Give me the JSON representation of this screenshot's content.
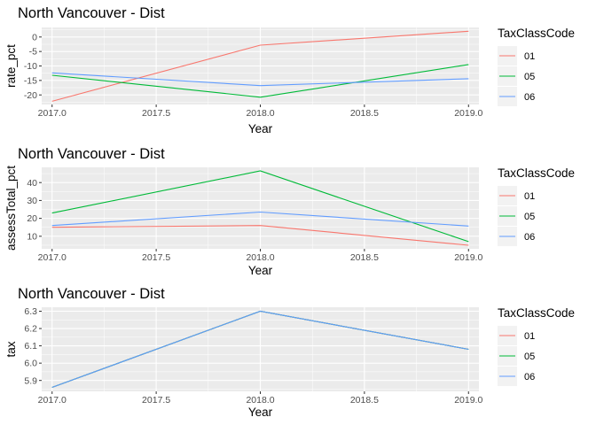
{
  "chart_data": [
    {
      "type": "line",
      "title": "North Vancouver - Dist",
      "xlabel": "Year",
      "ylabel": "rate_pct",
      "x": [
        2017,
        2018,
        2019
      ],
      "xticks": [
        "2017.0",
        "2017.5",
        "2018.0",
        "2018.5",
        "2019.0"
      ],
      "xlim": [
        2016.95,
        2019.05
      ],
      "yticks": [
        "0",
        "-5",
        "-10",
        "-15",
        "-20"
      ],
      "ylim": [
        -23.3,
        3.3
      ],
      "legend_title": "TaxClassCode",
      "legend_position": "right",
      "grid": true,
      "series": [
        {
          "name": "01",
          "color": "#F8766D",
          "values": [
            -22.2,
            -2.8,
            2.0
          ]
        },
        {
          "name": "05",
          "color": "#00BA38",
          "values": [
            -13.2,
            -20.8,
            -9.5
          ]
        },
        {
          "name": "06",
          "color": "#619CFF",
          "values": [
            -12.4,
            -16.8,
            -14.4
          ]
        }
      ]
    },
    {
      "type": "line",
      "title": "North Vancouver - Dist",
      "xlabel": "Year",
      "ylabel": "assessTotal_pct",
      "x": [
        2017,
        2018,
        2019
      ],
      "xticks": [
        "2017.0",
        "2017.5",
        "2018.0",
        "2018.5",
        "2019.0"
      ],
      "xlim": [
        2016.95,
        2019.05
      ],
      "yticks": [
        "10",
        "20",
        "30",
        "40"
      ],
      "ylim": [
        3.0,
        48.5
      ],
      "legend_title": "TaxClassCode",
      "legend_position": "right",
      "grid": true,
      "series": [
        {
          "name": "01",
          "color": "#F8766D",
          "values": [
            15.0,
            16.0,
            5.0
          ]
        },
        {
          "name": "05",
          "color": "#00BA38",
          "values": [
            23.0,
            46.5,
            7.0
          ]
        },
        {
          "name": "06",
          "color": "#619CFF",
          "values": [
            16.0,
            23.5,
            15.7
          ]
        }
      ]
    },
    {
      "type": "line",
      "title": "North Vancouver - Dist",
      "xlabel": "Year",
      "ylabel": "tax",
      "x": [
        2017,
        2018,
        2019
      ],
      "xticks": [
        "2017.0",
        "2017.5",
        "2018.0",
        "2018.5",
        "2019.0"
      ],
      "xlim": [
        2016.95,
        2019.05
      ],
      "yticks": [
        "5.9",
        "6.0",
        "6.1",
        "6.2",
        "6.3"
      ],
      "ylim": [
        5.837,
        6.323
      ],
      "legend_title": "TaxClassCode",
      "legend_position": "right",
      "grid": true,
      "series": [
        {
          "name": "01",
          "color": "#F8766D",
          "values": [
            5.86,
            6.3,
            6.08
          ]
        },
        {
          "name": "05",
          "color": "#00BA38",
          "values": [
            5.86,
            6.3,
            6.08
          ]
        },
        {
          "name": "06",
          "color": "#619CFF",
          "values": [
            5.86,
            6.3,
            6.08
          ]
        }
      ]
    }
  ]
}
